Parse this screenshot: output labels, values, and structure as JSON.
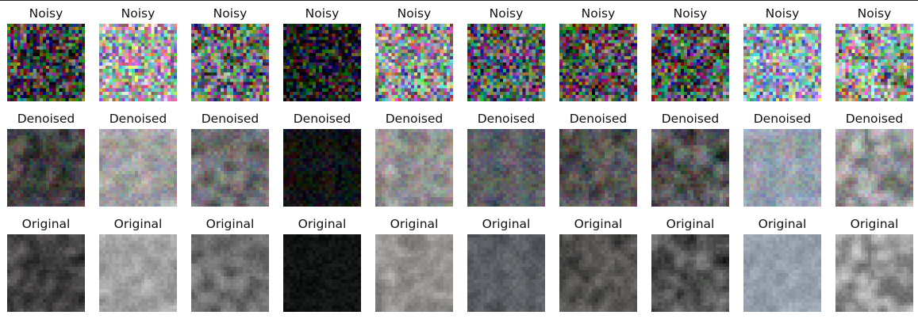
{
  "rows": [
    {
      "label": "Noisy"
    },
    {
      "label": "Denoised"
    },
    {
      "label": "Original"
    }
  ],
  "samples": [
    {
      "base": "#5e5c5c",
      "accent": "#1e1e1e"
    },
    {
      "base": "#8e8e8e",
      "accent": "#b9b9b9"
    },
    {
      "base": "#8a8a8a",
      "accent": "#4f4f4f"
    },
    {
      "base": "#141716",
      "accent": "#0c0e0d"
    },
    {
      "base": "#7c7a78",
      "accent": "#b3b0ad"
    },
    {
      "base": "#6a6d70",
      "accent": "#4a4e52"
    },
    {
      "base": "#6d6c6a",
      "accent": "#2d2d2d"
    },
    {
      "base": "#7b7c7b",
      "accent": "#1a1a1a"
    },
    {
      "base": "#8994a0",
      "accent": "#a6b1bc"
    },
    {
      "base": "#6e6e6e",
      "accent": "#cfcfcf"
    }
  ]
}
